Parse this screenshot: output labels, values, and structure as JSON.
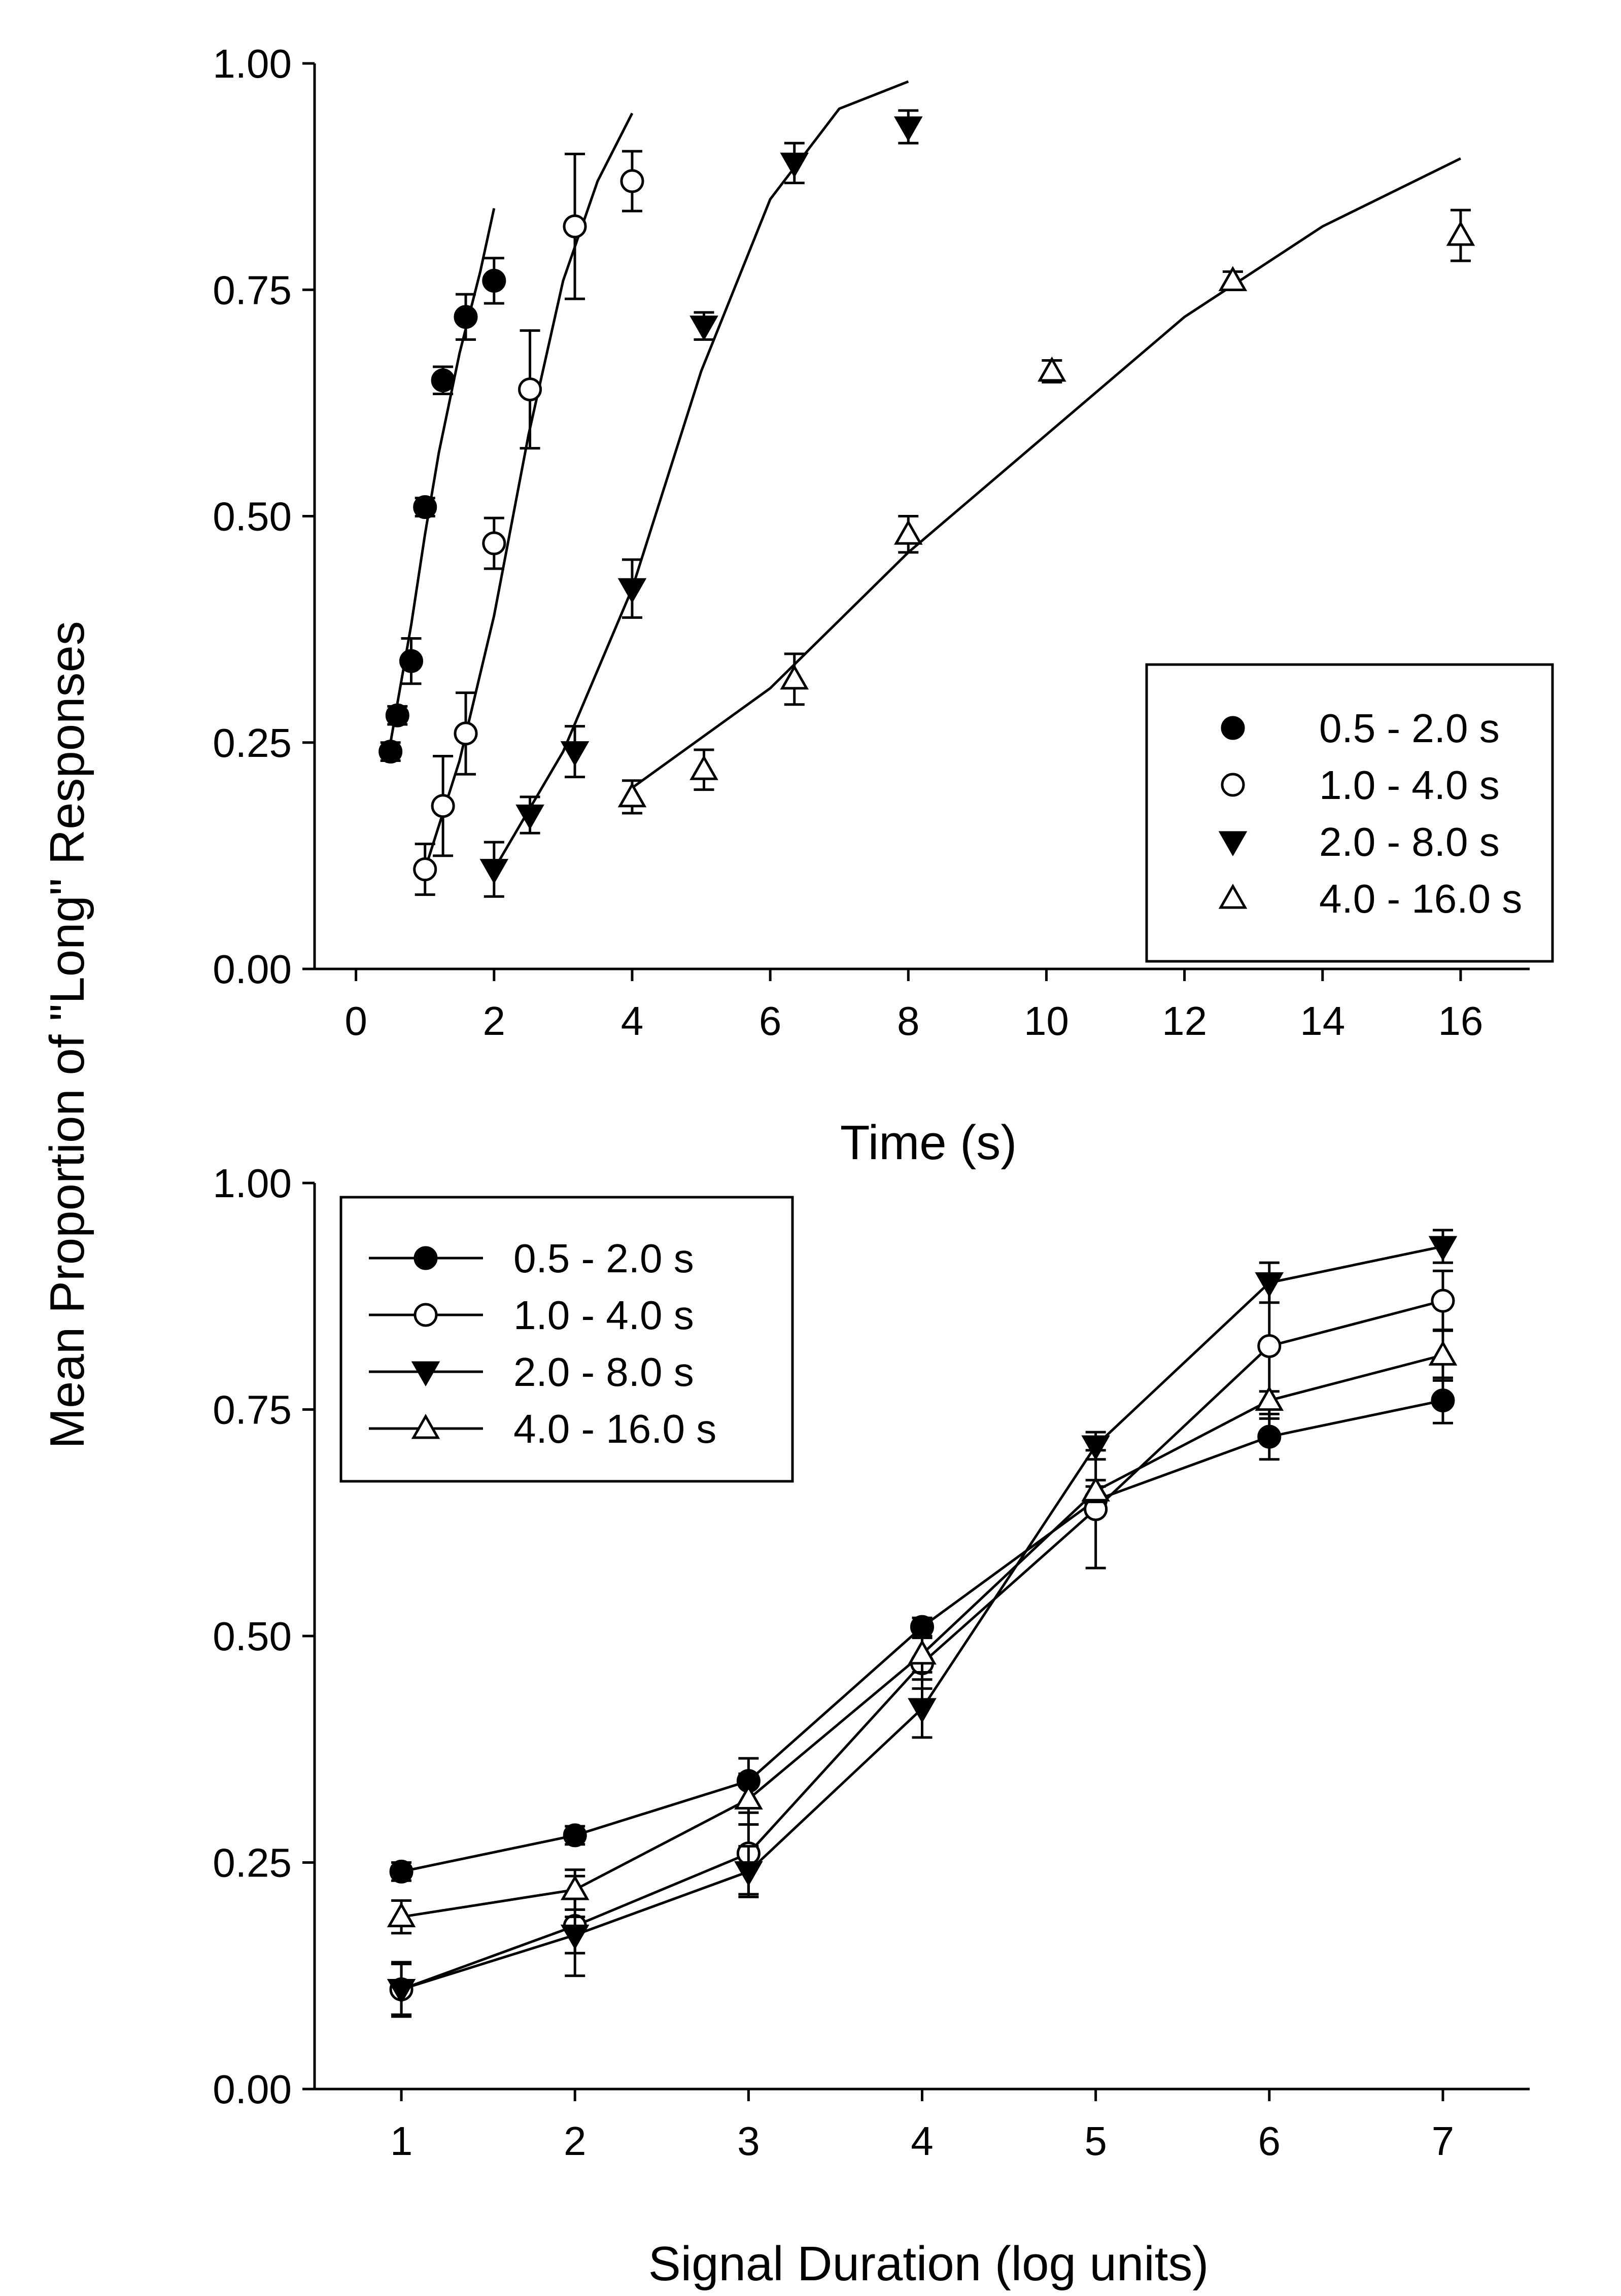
{
  "colors": {
    "ink": "#000000",
    "background": "#ffffff",
    "open_marker_fill": "#ffffff"
  },
  "shared_ylabel": "Mean Proportion of \"Long\" Responses",
  "chart_data": [
    {
      "type": "scatter",
      "panel": "top",
      "xlabel": "Time (s)",
      "ylabel": "Mean Proportion of \"Long\" Responses",
      "xlim": [
        -0.6,
        17
      ],
      "ylim": [
        0,
        1
      ],
      "xticks": [
        0,
        2,
        4,
        6,
        8,
        10,
        12,
        14,
        16
      ],
      "yticks": [
        0,
        0.25,
        0.5,
        0.75,
        1.0
      ],
      "xtick_labels": [
        "0",
        "2",
        "4",
        "6",
        "8",
        "10",
        "12",
        "14",
        "16"
      ],
      "ytick_labels": [
        "0.00",
        "0.25",
        "0.50",
        "0.75",
        "1.00"
      ],
      "grid": false,
      "legend": {
        "position": "right",
        "framed": true
      },
      "series": [
        {
          "name": "0.5 - 2.0 s",
          "marker": "filled-circle",
          "x": [
            0.5,
            0.6,
            0.8,
            1.0,
            1.26,
            1.59,
            2.0
          ],
          "y": [
            0.24,
            0.28,
            0.34,
            0.51,
            0.65,
            0.72,
            0.76
          ],
          "err": [
            0.01,
            0.01,
            0.025,
            0.01,
            0.015,
            0.025,
            0.025
          ],
          "fit": [
            [
              0.5,
              0.25
            ],
            [
              0.8,
              0.38
            ],
            [
              1.0,
              0.48
            ],
            [
              1.2,
              0.57
            ],
            [
              1.5,
              0.68
            ],
            [
              1.8,
              0.77
            ],
            [
              2.0,
              0.84
            ]
          ]
        },
        {
          "name": "1.0 - 4.0 s",
          "marker": "open-circle",
          "x": [
            1.0,
            1.26,
            1.59,
            2.0,
            2.52,
            3.17,
            4.0
          ],
          "y": [
            0.11,
            0.18,
            0.26,
            0.47,
            0.64,
            0.82,
            0.87
          ],
          "err": [
            0.028,
            0.055,
            0.045,
            0.028,
            0.065,
            0.08,
            0.033
          ],
          "fit": [
            [
              1.0,
              0.11
            ],
            [
              1.5,
              0.23
            ],
            [
              2.0,
              0.39
            ],
            [
              2.5,
              0.59
            ],
            [
              3.0,
              0.76
            ],
            [
              3.5,
              0.87
            ],
            [
              4.0,
              0.945
            ]
          ]
        },
        {
          "name": "2.0 - 8.0 s",
          "marker": "filled-triangle-down",
          "x": [
            2.0,
            2.52,
            3.17,
            4.0,
            5.04,
            6.35,
            8.0
          ],
          "y": [
            0.11,
            0.17,
            0.24,
            0.42,
            0.71,
            0.89,
            0.93
          ],
          "err": [
            0.03,
            0.02,
            0.028,
            0.032,
            0.015,
            0.022,
            0.018
          ],
          "fit": [
            [
              2.0,
              0.11
            ],
            [
              3.0,
              0.24
            ],
            [
              4.0,
              0.42
            ],
            [
              5.0,
              0.66
            ],
            [
              6.0,
              0.85
            ],
            [
              7.0,
              0.95
            ],
            [
              8.0,
              0.98
            ]
          ]
        },
        {
          "name": "4.0 - 16.0 s",
          "marker": "open-triangle-up",
          "x": [
            4.0,
            5.04,
            6.35,
            8.0,
            10.08,
            12.7,
            16.0
          ],
          "y": [
            0.19,
            0.22,
            0.32,
            0.48,
            0.66,
            0.76,
            0.81
          ],
          "err": [
            0.018,
            0.022,
            0.028,
            0.02,
            0.012,
            0.01,
            0.028
          ],
          "fit": [
            [
              4.0,
              0.2
            ],
            [
              6.0,
              0.31
            ],
            [
              8.0,
              0.46
            ],
            [
              10.0,
              0.59
            ],
            [
              12.0,
              0.72
            ],
            [
              14.0,
              0.82
            ],
            [
              16.0,
              0.895
            ]
          ]
        }
      ]
    },
    {
      "type": "line",
      "panel": "bottom",
      "xlabel": "Signal Duration (log units)",
      "ylabel": "Mean Proportion of \"Long\" Responses",
      "xlim": [
        0.5,
        7.5
      ],
      "ylim": [
        0,
        1
      ],
      "xticks": [
        1,
        2,
        3,
        4,
        5,
        6,
        7
      ],
      "yticks": [
        0,
        0.25,
        0.5,
        0.75,
        1.0
      ],
      "xtick_labels": [
        "1",
        "2",
        "3",
        "4",
        "5",
        "6",
        "7"
      ],
      "ytick_labels": [
        "0.00",
        "0.25",
        "0.50",
        "0.75",
        "1.00"
      ],
      "grid": false,
      "legend": {
        "position": "top-left",
        "framed": true
      },
      "x": [
        1,
        2,
        3,
        4,
        5,
        6,
        7
      ],
      "series": [
        {
          "name": "0.5 - 2.0 s",
          "marker": "filled-circle",
          "values": [
            0.24,
            0.28,
            0.34,
            0.51,
            0.65,
            0.72,
            0.76
          ],
          "err": [
            0.01,
            0.01,
            0.025,
            0.01,
            0.015,
            0.025,
            0.025
          ]
        },
        {
          "name": "1.0 - 4.0 s",
          "marker": "open-circle",
          "values": [
            0.11,
            0.18,
            0.26,
            0.47,
            0.64,
            0.82,
            0.87
          ],
          "err": [
            0.028,
            0.055,
            0.045,
            0.028,
            0.065,
            0.08,
            0.033
          ]
        },
        {
          "name": "2.0 - 8.0 s",
          "marker": "filled-triangle-down",
          "values": [
            0.11,
            0.17,
            0.24,
            0.42,
            0.71,
            0.89,
            0.93
          ],
          "err": [
            0.03,
            0.02,
            0.028,
            0.032,
            0.015,
            0.022,
            0.018
          ]
        },
        {
          "name": "4.0 - 16.0 s",
          "marker": "open-triangle-up",
          "values": [
            0.19,
            0.22,
            0.32,
            0.48,
            0.66,
            0.76,
            0.81
          ],
          "err": [
            0.018,
            0.022,
            0.028,
            0.02,
            0.012,
            0.01,
            0.028
          ]
        }
      ]
    }
  ]
}
